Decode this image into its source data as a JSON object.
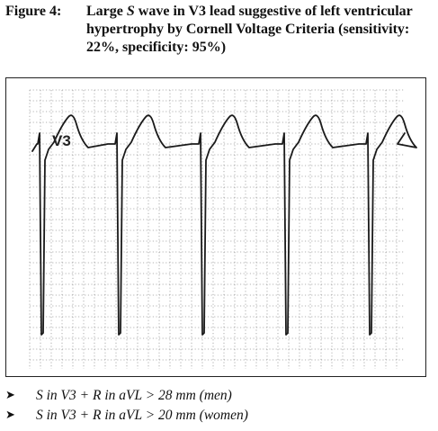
{
  "caption": {
    "label": "Figure 4:",
    "text_before": "Large ",
    "text_italic": "S",
    "text_after": " wave in V3 lead suggestive of left ventricular hypertrophy by Cornell Voltage Criteria (sensitivity: 22%, specificity: 95%)"
  },
  "figure": {
    "lead_label": "V3",
    "beats": 5
  },
  "bullets": [
    {
      "icon": "arrowhead-bullet-icon",
      "text": "S in V3 + R in aVL > 28 mm (men)"
    },
    {
      "icon": "arrowhead-bullet-icon",
      "text": "S in V3 + R in aVL > 20 mm (women)"
    }
  ]
}
